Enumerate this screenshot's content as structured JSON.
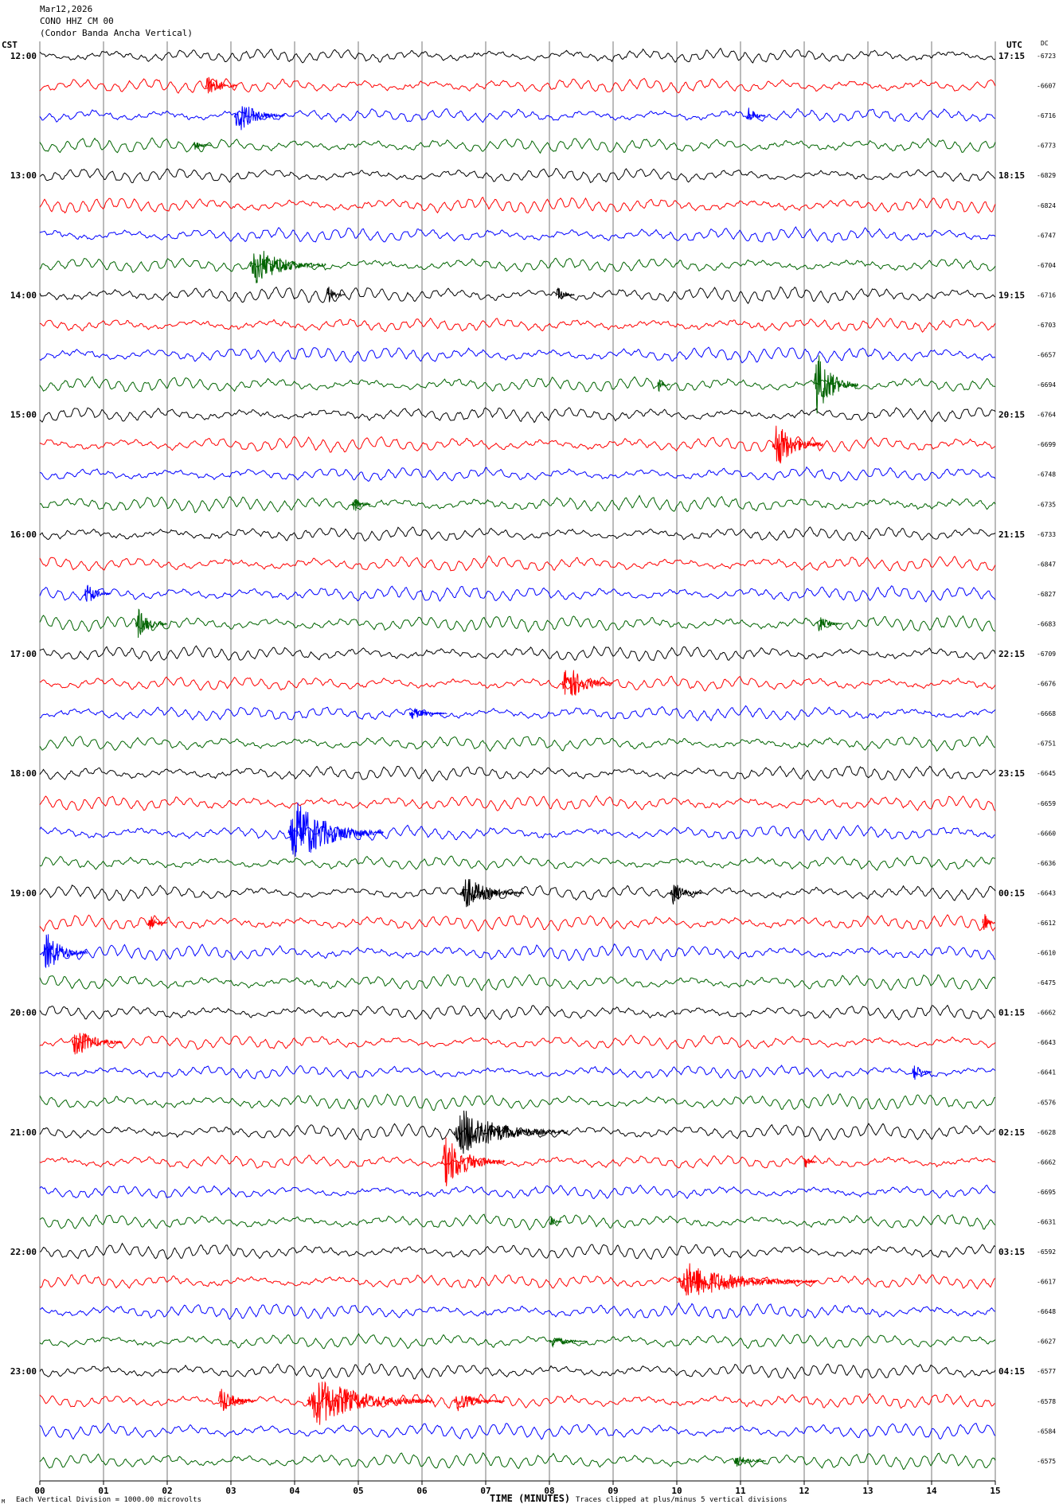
{
  "header": {
    "date": "Mar12,2026",
    "station": "CONO HHZ CM 00",
    "station_name": "(Condor Banda Ancha Vertical)"
  },
  "left_axis_label": "CST",
  "right_axis_label": "UTC",
  "dc_label": "DC",
  "footer": {
    "scale_note": "Each Vertical Division = 1000.00 microvolts",
    "xlabel": "TIME (MINUTES)",
    "clip_note": "Traces clipped at plus/minus 5 vertical divisions",
    "corner_mark": "M"
  },
  "colors": [
    "#000000",
    "#ff0000",
    "#0000ff",
    "#006400"
  ],
  "chart_data": {
    "type": "line",
    "title": "",
    "xlabel": "TIME (MINUTES)",
    "xlim": [
      0,
      15
    ],
    "x_ticks": [
      "00",
      "01",
      "02",
      "03",
      "04",
      "05",
      "06",
      "07",
      "08",
      "09",
      "10",
      "11",
      "12",
      "13",
      "14",
      "15"
    ],
    "grid": "vertical lines at each minute",
    "line_count": 48,
    "line_minutes": 15,
    "left_time_labels": [
      "12:00",
      "13:00",
      "14:00",
      "15:00",
      "16:00",
      "17:00",
      "18:00",
      "19:00",
      "20:00",
      "21:00",
      "22:00",
      "23:00"
    ],
    "right_time_labels": [
      "17:15",
      "18:15",
      "19:15",
      "20:15",
      "21:15",
      "22:15",
      "23:15",
      "00:15",
      "01:15",
      "02:15",
      "03:15",
      "04:15"
    ],
    "dc_offsets": [
      "-6723",
      "-6607",
      "-6716",
      "-6773",
      "-6829",
      "-6824",
      "-6747",
      "-6704",
      "-6716",
      "-6703",
      "-6657",
      "-6694",
      "-6764",
      "-6699",
      "-6748",
      "-6735",
      "-6733",
      "-6847",
      "-6827",
      "-6683",
      "-6709",
      "-6676",
      "-6668",
      "-6751",
      "-6645",
      "-6659",
      "-6660",
      "-6636",
      "-6643",
      "-6612",
      "-6610",
      "-6475",
      "-6662",
      "-6643",
      "-6641",
      "-6576",
      "-6628",
      "-6662",
      "-6695",
      "-6631",
      "-6592",
      "-6617",
      "-6648",
      "-6627",
      "-6577",
      "-6578",
      "-6584",
      "-6575"
    ],
    "events": [
      {
        "line": 1,
        "minute": 2.6,
        "duration": 0.5,
        "amplitude": 1.2
      },
      {
        "line": 2,
        "minute": 3.05,
        "duration": 0.8,
        "amplitude": 1.4
      },
      {
        "line": 2,
        "minute": 11.1,
        "duration": 0.3,
        "amplitude": 0.8
      },
      {
        "line": 3,
        "minute": 2.4,
        "duration": 0.3,
        "amplitude": 0.5
      },
      {
        "line": 7,
        "minute": 3.3,
        "duration": 1.2,
        "amplitude": 1.6
      },
      {
        "line": 8,
        "minute": 4.5,
        "duration": 0.3,
        "amplitude": 0.8
      },
      {
        "line": 8,
        "minute": 8.1,
        "duration": 0.3,
        "amplitude": 0.7
      },
      {
        "line": 11,
        "minute": 9.7,
        "duration": 0.2,
        "amplitude": 0.6
      },
      {
        "line": 11,
        "minute": 12.15,
        "duration": 0.7,
        "amplitude": 2.6
      },
      {
        "line": 13,
        "minute": 11.5,
        "duration": 0.8,
        "amplitude": 2.0
      },
      {
        "line": 15,
        "minute": 4.9,
        "duration": 0.3,
        "amplitude": 0.8
      },
      {
        "line": 18,
        "minute": 0.7,
        "duration": 0.4,
        "amplitude": 1.0
      },
      {
        "line": 19,
        "minute": 1.5,
        "duration": 0.5,
        "amplitude": 1.3
      },
      {
        "line": 19,
        "minute": 12.2,
        "duration": 0.4,
        "amplitude": 0.7
      },
      {
        "line": 21,
        "minute": 8.2,
        "duration": 0.8,
        "amplitude": 1.7
      },
      {
        "line": 22,
        "minute": 5.8,
        "duration": 0.6,
        "amplitude": 0.5
      },
      {
        "line": 26,
        "minute": 3.9,
        "duration": 1.5,
        "amplitude": 2.6
      },
      {
        "line": 28,
        "minute": 6.6,
        "duration": 1.0,
        "amplitude": 1.4
      },
      {
        "line": 28,
        "minute": 9.9,
        "duration": 0.5,
        "amplitude": 1.0
      },
      {
        "line": 29,
        "minute": 1.7,
        "duration": 0.3,
        "amplitude": 0.7
      },
      {
        "line": 29,
        "minute": 14.8,
        "duration": 0.2,
        "amplitude": 1.0
      },
      {
        "line": 30,
        "minute": 0.05,
        "duration": 0.7,
        "amplitude": 1.7
      },
      {
        "line": 33,
        "minute": 0.5,
        "duration": 0.8,
        "amplitude": 1.3
      },
      {
        "line": 34,
        "minute": 13.7,
        "duration": 0.3,
        "amplitude": 0.9
      },
      {
        "line": 36,
        "minute": 6.5,
        "duration": 1.8,
        "amplitude": 1.9
      },
      {
        "line": 37,
        "minute": 6.3,
        "duration": 1.0,
        "amplitude": 2.1
      },
      {
        "line": 37,
        "minute": 12.0,
        "duration": 0.2,
        "amplitude": 0.6
      },
      {
        "line": 39,
        "minute": 8.0,
        "duration": 0.2,
        "amplitude": 0.5
      },
      {
        "line": 41,
        "minute": 10.0,
        "duration": 2.2,
        "amplitude": 1.5
      },
      {
        "line": 43,
        "minute": 8.0,
        "duration": 0.6,
        "amplitude": 0.5
      },
      {
        "line": 45,
        "minute": 2.8,
        "duration": 0.6,
        "amplitude": 1.2
      },
      {
        "line": 45,
        "minute": 4.2,
        "duration": 2.0,
        "amplitude": 2.0
      },
      {
        "line": 45,
        "minute": 6.5,
        "duration": 0.8,
        "amplitude": 0.8
      },
      {
        "line": 47,
        "minute": 10.9,
        "duration": 0.5,
        "amplitude": 0.6
      }
    ]
  }
}
